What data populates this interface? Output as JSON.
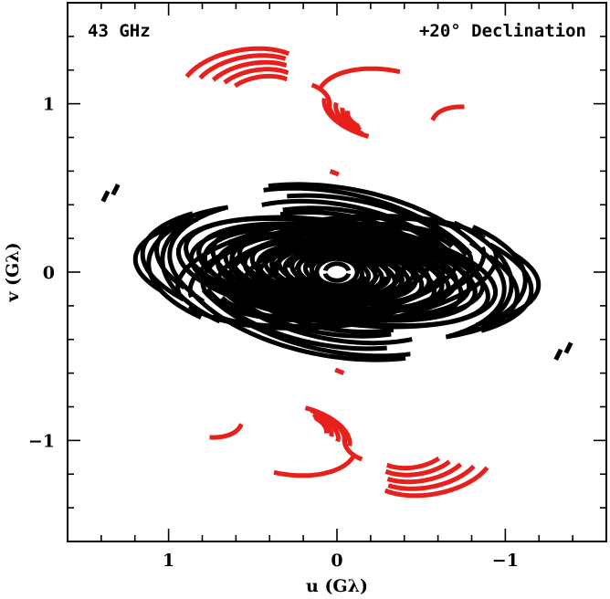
{
  "chart_data": {
    "type": "scatter",
    "title": "",
    "xlabel": "u (Gλ)",
    "ylabel": "v (Gλ)",
    "xlim": [
      1.6,
      -1.6
    ],
    "ylim": [
      -1.6,
      1.6
    ],
    "x_reversed": true,
    "x_ticks": [
      1,
      0,
      -1
    ],
    "x_tick_labels": [
      "1",
      "0",
      "−1"
    ],
    "y_ticks": [
      1,
      0,
      -1
    ],
    "y_tick_labels": [
      "1",
      "0",
      "−1"
    ],
    "grid": false,
    "annotations": {
      "frequency": "43 GHz",
      "declination": "+20° Declination"
    },
    "colors": {
      "inner": "#000000",
      "outer": "#e8201c"
    },
    "series": [
      {
        "color": "#000000",
        "description_type": "uv-tracks",
        "tracks": [
          {
            "a": 0.95,
            "b": 0.3,
            "phi": 8,
            "t0": 150,
            "t1": 360
          },
          {
            "a": 0.91,
            "b": 0.28,
            "phi": 10,
            "t0": 160,
            "t1": 350
          },
          {
            "a": 0.87,
            "b": 0.27,
            "phi": 6,
            "t0": 140,
            "t1": 345
          },
          {
            "a": 0.83,
            "b": 0.26,
            "phi": 9,
            "t0": 155,
            "t1": 370
          },
          {
            "a": 0.79,
            "b": 0.25,
            "phi": 7,
            "t0": 135,
            "t1": 340
          },
          {
            "a": 0.75,
            "b": 0.24,
            "phi": 11,
            "t0": 165,
            "t1": 360
          },
          {
            "a": 0.71,
            "b": 0.22,
            "phi": 5,
            "t0": 140,
            "t1": 355
          },
          {
            "a": 0.67,
            "b": 0.21,
            "phi": 9,
            "t0": 150,
            "t1": 345
          },
          {
            "a": 0.63,
            "b": 0.2,
            "phi": 8,
            "t0": 145,
            "t1": 365
          },
          {
            "a": 0.59,
            "b": 0.19,
            "phi": 12,
            "t0": 160,
            "t1": 350
          },
          {
            "a": 0.55,
            "b": 0.18,
            "phi": 6,
            "t0": 140,
            "t1": 340
          },
          {
            "a": 0.51,
            "b": 0.17,
            "phi": 10,
            "t0": 155,
            "t1": 360
          },
          {
            "a": 0.47,
            "b": 0.16,
            "phi": 7,
            "t0": 150,
            "t1": 350
          },
          {
            "a": 0.43,
            "b": 0.15,
            "phi": 9,
            "t0": 145,
            "t1": 345
          },
          {
            "a": 0.39,
            "b": 0.14,
            "phi": 8,
            "t0": 160,
            "t1": 360
          },
          {
            "a": 0.35,
            "b": 0.13,
            "phi": 11,
            "t0": 150,
            "t1": 355
          },
          {
            "a": 0.31,
            "b": 0.12,
            "phi": 6,
            "t0": 140,
            "t1": 345
          },
          {
            "a": 0.27,
            "b": 0.11,
            "phi": 9,
            "t0": 155,
            "t1": 360
          },
          {
            "a": 0.23,
            "b": 0.1,
            "phi": 7,
            "t0": 150,
            "t1": 350
          },
          {
            "a": 0.19,
            "b": 0.09,
            "phi": 10,
            "t0": 145,
            "t1": 345
          },
          {
            "a": 0.15,
            "b": 0.08,
            "phi": 8,
            "t0": 155,
            "t1": 355
          },
          {
            "a": 1.2,
            "b": 0.36,
            "phi": 4,
            "t0": 150,
            "t1": 225
          },
          {
            "a": 1.16,
            "b": 0.4,
            "phi": 6,
            "t0": 140,
            "t1": 220
          },
          {
            "a": 1.12,
            "b": 0.44,
            "phi": 3,
            "t0": 135,
            "t1": 215
          },
          {
            "a": 1.08,
            "b": 0.38,
            "phi": 8,
            "t0": 145,
            "t1": 230
          },
          {
            "a": 1.04,
            "b": 0.46,
            "phi": 5,
            "t0": 130,
            "t1": 210
          },
          {
            "a": 1.0,
            "b": 0.42,
            "phi": 7,
            "t0": 140,
            "t1": 225
          },
          {
            "a": 0.98,
            "b": 0.5,
            "phi": 10,
            "t0": 60,
            "t1": 150
          },
          {
            "a": 0.92,
            "b": 0.47,
            "phi": 12,
            "t0": 55,
            "t1": 145
          },
          {
            "a": 0.86,
            "b": 0.44,
            "phi": 9,
            "t0": 65,
            "t1": 150
          },
          {
            "a": 0.8,
            "b": 0.4,
            "phi": 11,
            "t0": 50,
            "t1": 140
          },
          {
            "a": 0.74,
            "b": 0.37,
            "phi": 8,
            "t0": 60,
            "t1": 145
          },
          {
            "a": 0.68,
            "b": 0.34,
            "phi": 10,
            "t0": 55,
            "t1": 150
          },
          {
            "a": 0.95,
            "b": 0.32,
            "phi": -6,
            "t0": 170,
            "t1": 340
          },
          {
            "a": 0.88,
            "b": 0.3,
            "phi": -8,
            "t0": 175,
            "t1": 330
          },
          {
            "a": 0.8,
            "b": 0.28,
            "phi": -5,
            "t0": 165,
            "t1": 335
          },
          {
            "a": 0.72,
            "b": 0.26,
            "phi": -7,
            "t0": 180,
            "t1": 345
          },
          {
            "a": 0.64,
            "b": 0.24,
            "phi": -4,
            "t0": 170,
            "t1": 330
          },
          {
            "a": 0.56,
            "b": 0.22,
            "phi": -9,
            "t0": 175,
            "t1": 340
          },
          {
            "a": 0.48,
            "b": 0.2,
            "phi": -6,
            "t0": 165,
            "t1": 335
          },
          {
            "a": 0.4,
            "b": 0.18,
            "phi": -5,
            "t0": 175,
            "t1": 345
          },
          {
            "a": 0.36,
            "b": 0.2,
            "phi": 0,
            "t0": 0,
            "t1": 180
          },
          {
            "a": 0.3,
            "b": 0.17,
            "phi": 0,
            "t0": 10,
            "t1": 170
          },
          {
            "a": 0.24,
            "b": 0.14,
            "phi": 0,
            "t0": 5,
            "t1": 175
          },
          {
            "a": 0.18,
            "b": 0.11,
            "phi": 0,
            "t0": 15,
            "t1": 165
          },
          {
            "a": 0.12,
            "b": 0.08,
            "phi": 0,
            "t0": 0,
            "t1": 180
          },
          {
            "a": 0.07,
            "b": 0.05,
            "phi": 0,
            "t0": 10,
            "t1": 170
          }
        ],
        "segments": [
          {
            "x": [
              1.39,
              1.36
            ],
            "y": [
              0.42,
              0.48
            ]
          },
          {
            "x": [
              1.33,
              1.3
            ],
            "y": [
              0.46,
              0.52
            ]
          },
          {
            "x": [
              -1.39,
              -1.36
            ],
            "y": [
              -0.42,
              -0.48
            ]
          },
          {
            "x": [
              -1.33,
              -1.3
            ],
            "y": [
              -0.46,
              -0.52
            ]
          }
        ]
      },
      {
        "color": "#e8201c",
        "description_type": "uv-tracks",
        "tracks": [
          {
            "cx": 0.55,
            "cy": 1.12,
            "a": 0.38,
            "b": 0.2,
            "phi": -10,
            "t0": 30,
            "t1": 140
          },
          {
            "cx": 0.52,
            "cy": 1.1,
            "a": 0.34,
            "b": 0.18,
            "phi": -10,
            "t0": 35,
            "t1": 135
          },
          {
            "cx": 0.49,
            "cy": 1.08,
            "a": 0.3,
            "b": 0.16,
            "phi": -10,
            "t0": 40,
            "t1": 135
          },
          {
            "cx": 0.47,
            "cy": 1.06,
            "a": 0.26,
            "b": 0.14,
            "phi": -10,
            "t0": 45,
            "t1": 140
          },
          {
            "cx": 0.45,
            "cy": 1.04,
            "a": 0.22,
            "b": 0.12,
            "phi": -10,
            "t0": 50,
            "t1": 140
          },
          {
            "cx": 0.4,
            "cy": 0.95,
            "a": 0.36,
            "b": 0.18,
            "phi": -10,
            "t0": 140,
            "t1": 195
          },
          {
            "cx": -0.3,
            "cy": 0.98,
            "a": 0.42,
            "b": 0.22,
            "phi": 10,
            "t0": 10,
            "t1": 95
          },
          {
            "cx": -0.28,
            "cy": 0.97,
            "a": 0.36,
            "b": 0.18,
            "phi": 10,
            "t0": 280,
            "t1": 360
          },
          {
            "cx": -0.26,
            "cy": 0.96,
            "a": 0.31,
            "b": 0.16,
            "phi": 10,
            "t0": 285,
            "t1": 360
          },
          {
            "cx": -0.25,
            "cy": 0.95,
            "a": 0.26,
            "b": 0.13,
            "phi": 10,
            "t0": 290,
            "t1": 365
          },
          {
            "cx": -0.24,
            "cy": 0.94,
            "a": 0.21,
            "b": 0.11,
            "phi": 10,
            "t0": 295,
            "t1": 360
          },
          {
            "cx": -0.22,
            "cy": 0.93,
            "a": 0.16,
            "b": 0.09,
            "phi": 10,
            "t0": 300,
            "t1": 360
          },
          {
            "cx": -0.85,
            "cy": 0.8,
            "a": 0.3,
            "b": 0.16,
            "phi": 20,
            "t0": 0,
            "t1": 60
          },
          {
            "cx": -0.55,
            "cy": -1.12,
            "a": 0.38,
            "b": 0.2,
            "phi": -10,
            "t0": 210,
            "t1": 320
          },
          {
            "cx": -0.52,
            "cy": -1.1,
            "a": 0.34,
            "b": 0.18,
            "phi": -10,
            "t0": 215,
            "t1": 315
          },
          {
            "cx": -0.49,
            "cy": -1.08,
            "a": 0.3,
            "b": 0.16,
            "phi": -10,
            "t0": 220,
            "t1": 315
          },
          {
            "cx": -0.47,
            "cy": -1.06,
            "a": 0.26,
            "b": 0.14,
            "phi": -10,
            "t0": 225,
            "t1": 320
          },
          {
            "cx": -0.45,
            "cy": -1.04,
            "a": 0.22,
            "b": 0.12,
            "phi": -10,
            "t0": 230,
            "t1": 320
          },
          {
            "cx": -0.4,
            "cy": -0.95,
            "a": 0.36,
            "b": 0.18,
            "phi": -10,
            "t0": 320,
            "t1": 375
          },
          {
            "cx": 0.3,
            "cy": -0.98,
            "a": 0.42,
            "b": 0.22,
            "phi": 10,
            "t0": 190,
            "t1": 275
          },
          {
            "cx": 0.28,
            "cy": -0.97,
            "a": 0.36,
            "b": 0.18,
            "phi": 10,
            "t0": 100,
            "t1": 180
          },
          {
            "cx": 0.26,
            "cy": -0.96,
            "a": 0.31,
            "b": 0.16,
            "phi": 10,
            "t0": 105,
            "t1": 180
          },
          {
            "cx": 0.25,
            "cy": -0.95,
            "a": 0.26,
            "b": 0.13,
            "phi": 10,
            "t0": 110,
            "t1": 185
          },
          {
            "cx": 0.24,
            "cy": -0.94,
            "a": 0.21,
            "b": 0.11,
            "phi": 10,
            "t0": 115,
            "t1": 180
          },
          {
            "cx": 0.22,
            "cy": -0.93,
            "a": 0.16,
            "b": 0.09,
            "phi": 10,
            "t0": 120,
            "t1": 180
          },
          {
            "cx": 0.85,
            "cy": -0.8,
            "a": 0.3,
            "b": 0.16,
            "phi": 20,
            "t0": 180,
            "t1": 240
          }
        ],
        "segments": [
          {
            "x": [
              0.04,
              -0.01
            ],
            "y": [
              0.6,
              0.58
            ]
          },
          {
            "x": [
              -0.04,
              0.01
            ],
            "y": [
              -0.6,
              -0.58
            ]
          }
        ]
      }
    ]
  }
}
